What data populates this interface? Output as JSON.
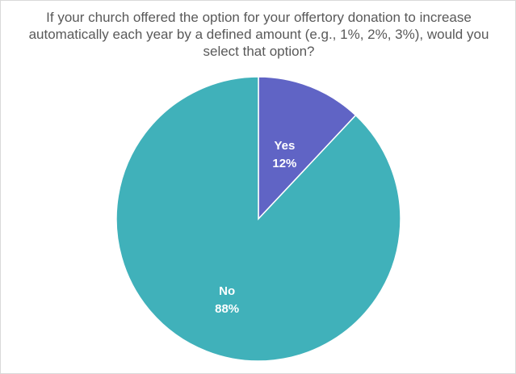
{
  "chart_data": {
    "type": "pie",
    "title": "If your church offered the option for your offertory donation to increase automatically each year by a defined amount (e.g., 1%, 2%, 3%), would you select that option?",
    "categories": [
      "Yes",
      "No"
    ],
    "values": [
      12,
      88
    ],
    "value_labels": [
      "12%",
      "88%"
    ],
    "colors": [
      "#6064c5",
      "#40b1ba"
    ],
    "start_angle_deg": 0,
    "direction": "clockwise",
    "legend": "none"
  }
}
